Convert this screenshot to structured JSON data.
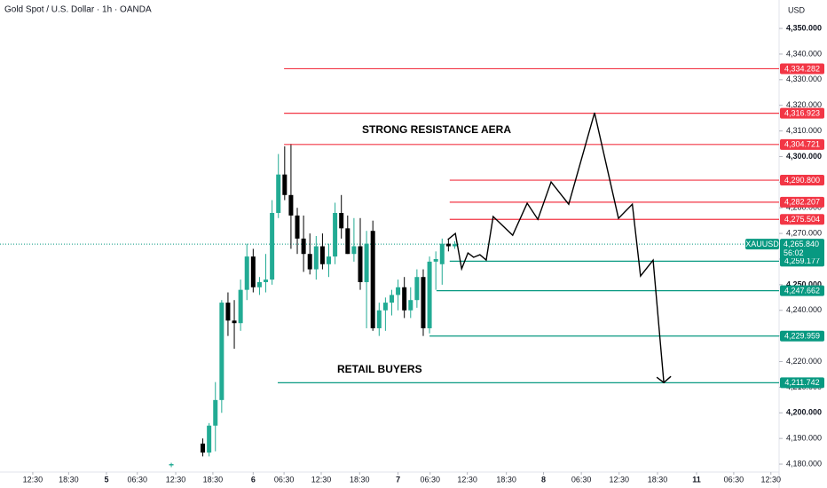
{
  "header": {
    "title": "Gold Spot / U.S. Dollar · 1h · OANDA"
  },
  "chart_data": {
    "type": "candlestick",
    "y_axis_label": "USD",
    "up_color": "#22ab94",
    "down_color": "#000000",
    "x": [
      0,
      5,
      6,
      7,
      8,
      9,
      10,
      11,
      12,
      13,
      14,
      15,
      16,
      17,
      18,
      19,
      20,
      21,
      22,
      23,
      24,
      25,
      26,
      27,
      28,
      29,
      30,
      31,
      32,
      33,
      34,
      35,
      36,
      37,
      38,
      39,
      40,
      41,
      42,
      43,
      44,
      45
    ],
    "open": [
      4179.5,
      4188,
      4184.5,
      4195,
      4205,
      4243,
      4236,
      4235,
      4248,
      4261,
      4249,
      4251,
      4252,
      4278,
      4293,
      4285,
      4277,
      4268,
      4262,
      4256,
      4265,
      4258,
      4261,
      4278,
      4272,
      4262,
      4265,
      4251,
      4271,
      4233,
      4240,
      4243,
      4246,
      4249,
      4240,
      4244,
      4253,
      4233,
      4259,
      4258,
      4266,
      4265
    ],
    "high": [
      4180.5,
      4190,
      4196,
      4212,
      4244,
      4247,
      4244,
      4252,
      4266,
      4264,
      4253,
      4262,
      4283,
      4301,
      4304,
      4305,
      4280,
      4277,
      4270,
      4269,
      4270,
      4266,
      4282,
      4285,
      4277,
      4276,
      4276,
      4271,
      4275,
      4243,
      4245,
      4248,
      4252,
      4253,
      4249,
      4256,
      4256,
      4261,
      4263,
      4268,
      4268,
      4267
    ],
    "low": [
      4178.8,
      4183,
      4183,
      4185,
      4200,
      4230,
      4225,
      4232,
      4244,
      4247,
      4246,
      4247,
      4250,
      4276,
      4283,
      4264,
      4262,
      4255,
      4254,
      4252,
      4256,
      4253,
      4258,
      4268,
      4262,
      4259,
      4248,
      4233,
      4232,
      4230,
      4232,
      4238,
      4240,
      4237,
      4237,
      4241,
      4230,
      4231,
      4248,
      4250,
      4263,
      4264
    ],
    "close": [
      4180,
      4184.5,
      4195,
      4205,
      4243,
      4236,
      4235,
      4248,
      4261,
      4249,
      4251,
      4252,
      4278,
      4293,
      4285,
      4277,
      4268,
      4262,
      4256,
      4265,
      4258,
      4261,
      4278,
      4272,
      4262,
      4265,
      4251,
      4266,
      4233,
      4240,
      4243,
      4246,
      4249,
      4240,
      4244,
      4253,
      4233,
      4259,
      4260,
      4266,
      4265,
      4265.8
    ],
    "xlim": [
      -27.2,
      96.5
    ],
    "xticks": [
      {
        "value": -22,
        "label": "12:30"
      },
      {
        "value": -16.3,
        "label": "18:30"
      },
      {
        "value": -10.3,
        "label": "5"
      },
      {
        "value": -5.4,
        "label": "06:30"
      },
      {
        "value": 0.7,
        "label": "12:30"
      },
      {
        "value": 6.6,
        "label": "18:30"
      },
      {
        "value": 13,
        "label": "6"
      },
      {
        "value": 17.9,
        "label": "06:30"
      },
      {
        "value": 23.8,
        "label": "12:30"
      },
      {
        "value": 29.9,
        "label": "18:30"
      },
      {
        "value": 36,
        "label": "7"
      },
      {
        "value": 41.1,
        "label": "06:30"
      },
      {
        "value": 47,
        "label": "12:30"
      },
      {
        "value": 53.2,
        "label": "18:30"
      },
      {
        "value": 59.1,
        "label": "8"
      },
      {
        "value": 65.1,
        "label": "06:30"
      },
      {
        "value": 71.1,
        "label": "12:30"
      },
      {
        "value": 77.2,
        "label": "18:30"
      },
      {
        "value": 83.4,
        "label": "11"
      },
      {
        "value": 89.3,
        "label": "06:30"
      },
      {
        "value": 95.2,
        "label": "12:30"
      }
    ],
    "ylim": [
      4176.9,
      4361.1
    ],
    "yticks": [
      {
        "value": 4180,
        "label": "4,180.000"
      },
      {
        "value": 4190,
        "label": "4,190.000"
      },
      {
        "value": 4200,
        "label": "4,200.000"
      },
      {
        "value": 4210,
        "label": "4,210.000"
      },
      {
        "value": 4220,
        "label": "4,220.000"
      },
      {
        "value": 4230,
        "label": "4,230.000"
      },
      {
        "value": 4240,
        "label": "4,240.000"
      },
      {
        "value": 4250,
        "label": "4,250.000"
      },
      {
        "value": 4260,
        "label": "4,260.000"
      },
      {
        "value": 4270,
        "label": "4,270.000"
      },
      {
        "value": 4280,
        "label": "4,280.000"
      },
      {
        "value": 4290,
        "label": "4,290.000"
      },
      {
        "value": 4300,
        "label": "4,300.000"
      },
      {
        "value": 4310,
        "label": "4,310.000"
      },
      {
        "value": 4320,
        "label": "4,320.000"
      },
      {
        "value": 4330,
        "label": "4,330.000"
      },
      {
        "value": 4340,
        "label": "4,340.000"
      },
      {
        "value": 4350,
        "label": "4,350.000"
      }
    ],
    "levels": [
      {
        "value": 4334.282,
        "label": "4,334.282",
        "x_start": 17.9,
        "color": "#f23645"
      },
      {
        "value": 4316.923,
        "label": "4,316.923",
        "x_start": 17.9,
        "color": "#f23645"
      },
      {
        "value": 4304.721,
        "label": "4,304.721",
        "x_start": 17.9,
        "color": "#f23645"
      },
      {
        "value": 4290.8,
        "label": "4,290.800",
        "x_start": 44.2,
        "color": "#f23645"
      },
      {
        "value": 4282.207,
        "label": "4,282.207",
        "x_start": 44.2,
        "color": "#f23645"
      },
      {
        "value": 4275.504,
        "label": "4,275.504",
        "x_start": 44.2,
        "color": "#f23645"
      },
      {
        "value": 4259.177,
        "label": "4,259.177",
        "x_start": 44.2,
        "color": "#089981"
      },
      {
        "value": 4247.662,
        "label": "4,247.662",
        "x_start": 42.1,
        "color": "#089981"
      },
      {
        "value": 4229.959,
        "label": "4,229.959",
        "x_start": 41,
        "color": "#089981"
      },
      {
        "value": 4211.742,
        "label": "4,211.742",
        "x_start": 16.9,
        "color": "#089981"
      }
    ],
    "projection": {
      "color": "#000000",
      "x": [
        43.9,
        45.1,
        46.1,
        47.1,
        48,
        49,
        50,
        51.1,
        54.2,
        56.5,
        58.2,
        60.3,
        63.1,
        67.2,
        71,
        73.2,
        74.5,
        76.5,
        78.2
      ],
      "values": [
        4267.6,
        4270,
        4256.2,
        4262.4,
        4260.7,
        4261.7,
        4259.6,
        4276.6,
        4269.3,
        4281.8,
        4275.5,
        4290.1,
        4281.4,
        4317.1,
        4275.9,
        4281.4,
        4253.4,
        4259.6,
        4211.8
      ]
    },
    "annotations": [
      "STRONG RESISTANCE AERA",
      "RETAIL BUYERS"
    ],
    "last_price": {
      "symbol": "XAUUSD",
      "value": 4265.84,
      "label": "4,265.840",
      "countdown": "56:02",
      "color": "#089981"
    }
  }
}
